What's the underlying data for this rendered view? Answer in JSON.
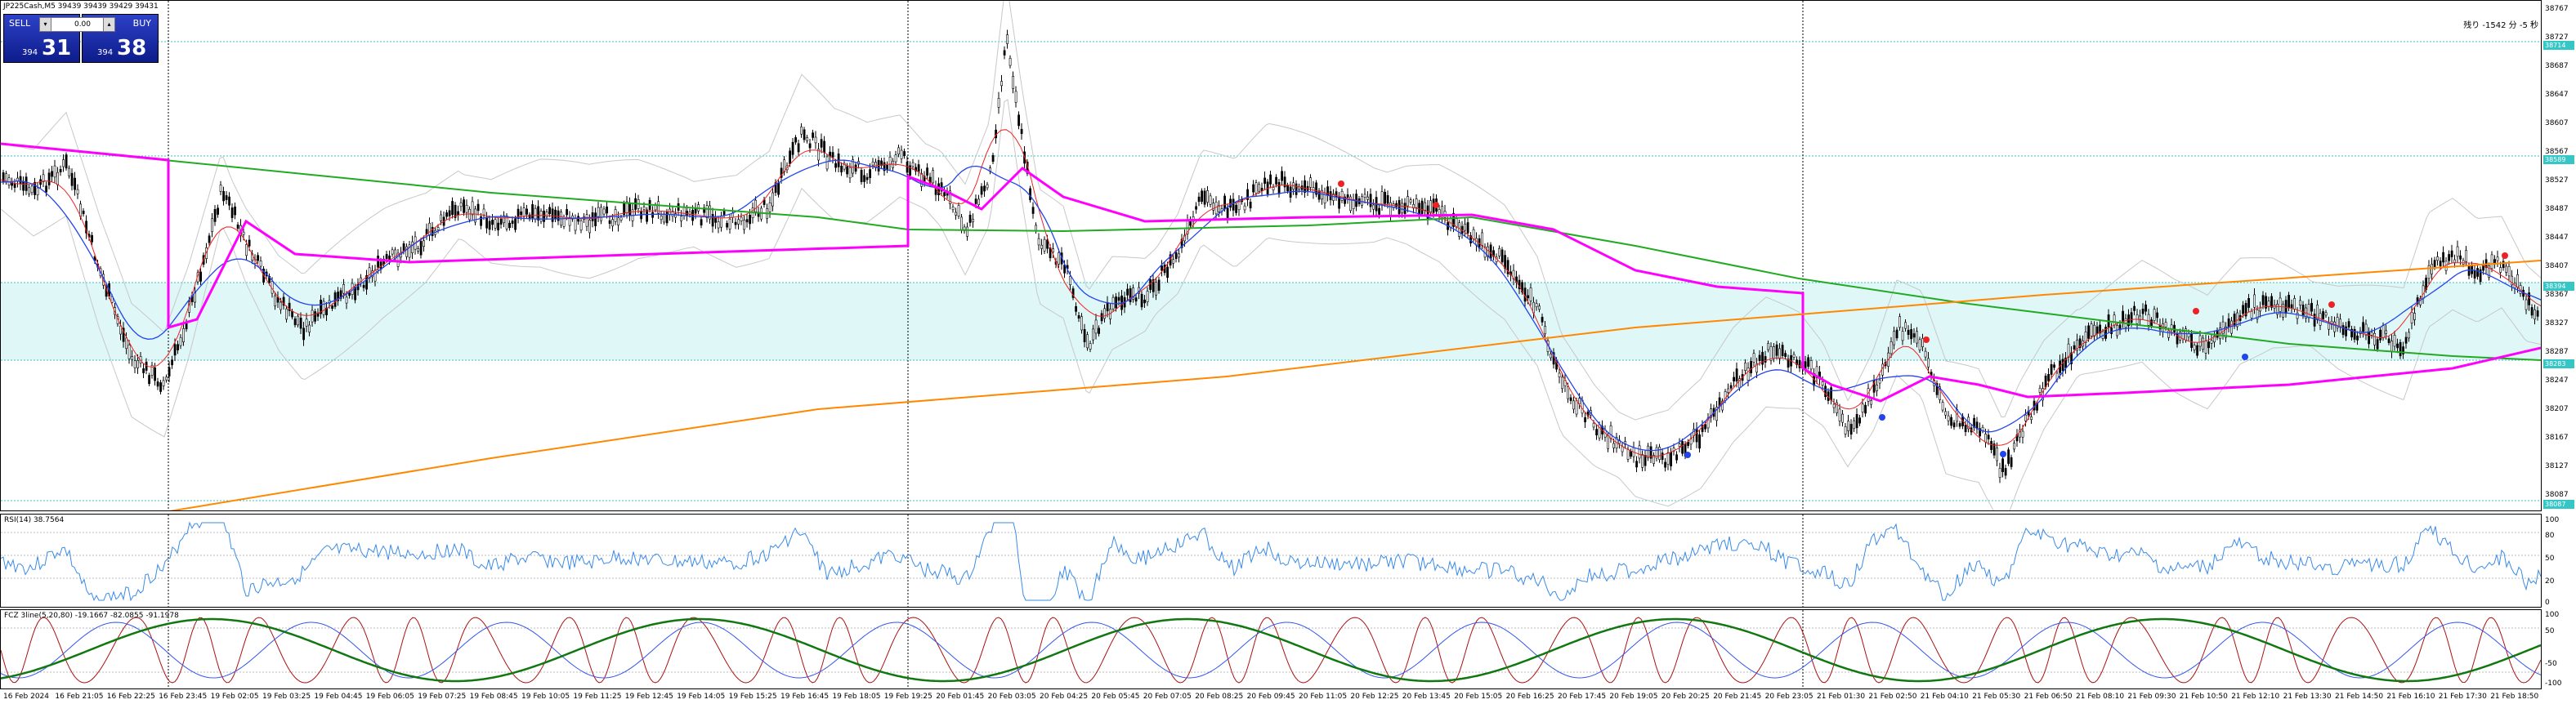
{
  "symbol_header": "JP225Cash,M5  39439 39439 39429 39431",
  "trade": {
    "sell_label": "SELL",
    "buy_label": "BUY",
    "lot": "0.00",
    "sell_small": "394",
    "sell_big": "31",
    "buy_small": "394",
    "buy_big": "38",
    "down_arrow": "▾",
    "up_arrow": "▴"
  },
  "status_text": "残り -1542 分 -5 秒",
  "price_axis": [
    "38767",
    "38727",
    "38687",
    "38647",
    "38607",
    "38567",
    "38527",
    "38487",
    "38447",
    "38407",
    "38367",
    "38327",
    "38287",
    "38247",
    "38207",
    "38167",
    "38127",
    "38087"
  ],
  "price_highlights": [
    {
      "label": "38714",
      "color": "#36c6c6"
    },
    {
      "label": "38589",
      "color": "#36c6c6"
    },
    {
      "label": "38394",
      "color": "#36c6c6"
    },
    {
      "label": "38283",
      "color": "#36c6c6"
    },
    {
      "label": "38087",
      "color": "#36c6c6"
    }
  ],
  "rsi": {
    "title": "RSI(14) 38.7564",
    "axis": [
      "100",
      "80",
      "50",
      "20",
      "0"
    ]
  },
  "osc": {
    "title": "FCZ 3line(5,20,80) -19.1667 -82.0855 -91.1978",
    "axis": [
      "100",
      "50",
      "-50",
      "-100"
    ]
  },
  "time_axis": [
    "16 Feb 2024",
    "16 Feb 21:05",
    "16 Feb 22:25",
    "16 Feb 23:45",
    "19 Feb 02:05",
    "19 Feb 03:25",
    "19 Feb 04:45",
    "19 Feb 06:05",
    "19 Feb 07:25",
    "19 Feb 08:45",
    "19 Feb 10:05",
    "19 Feb 11:25",
    "19 Feb 12:45",
    "19 Feb 14:05",
    "19 Feb 15:25",
    "19 Feb 16:45",
    "19 Feb 18:05",
    "19 Feb 19:25",
    "20 Feb 01:45",
    "20 Feb 03:05",
    "20 Feb 04:25",
    "20 Feb 05:45",
    "20 Feb 07:05",
    "20 Feb 08:25",
    "20 Feb 09:45",
    "20 Feb 11:05",
    "20 Feb 12:25",
    "20 Feb 13:45",
    "20 Feb 15:05",
    "20 Feb 16:25",
    "20 Feb 17:45",
    "20 Feb 19:05",
    "20 Feb 20:25",
    "20 Feb 21:45",
    "20 Feb 23:05",
    "21 Feb 01:30",
    "21 Feb 02:50",
    "21 Feb 04:10",
    "21 Feb 05:30",
    "21 Feb 06:50",
    "21 Feb 08:10",
    "21 Feb 09:30",
    "21 Feb 10:50",
    "21 Feb 12:10",
    "21 Feb 13:30",
    "21 Feb 14:50",
    "21 Feb 16:10",
    "21 Feb 17:30",
    "21 Feb 18:50"
  ],
  "colors": {
    "band_fill": "#dff7f7",
    "band_line": "#36c6c6",
    "ma_magenta": "#ff00ff",
    "ma_green": "#22aa22",
    "ma_orange": "#ff8800",
    "ma_blue": "#2244ee",
    "ma_red": "#ee2222",
    "bollinger": "#c8c8c8"
  }
}
